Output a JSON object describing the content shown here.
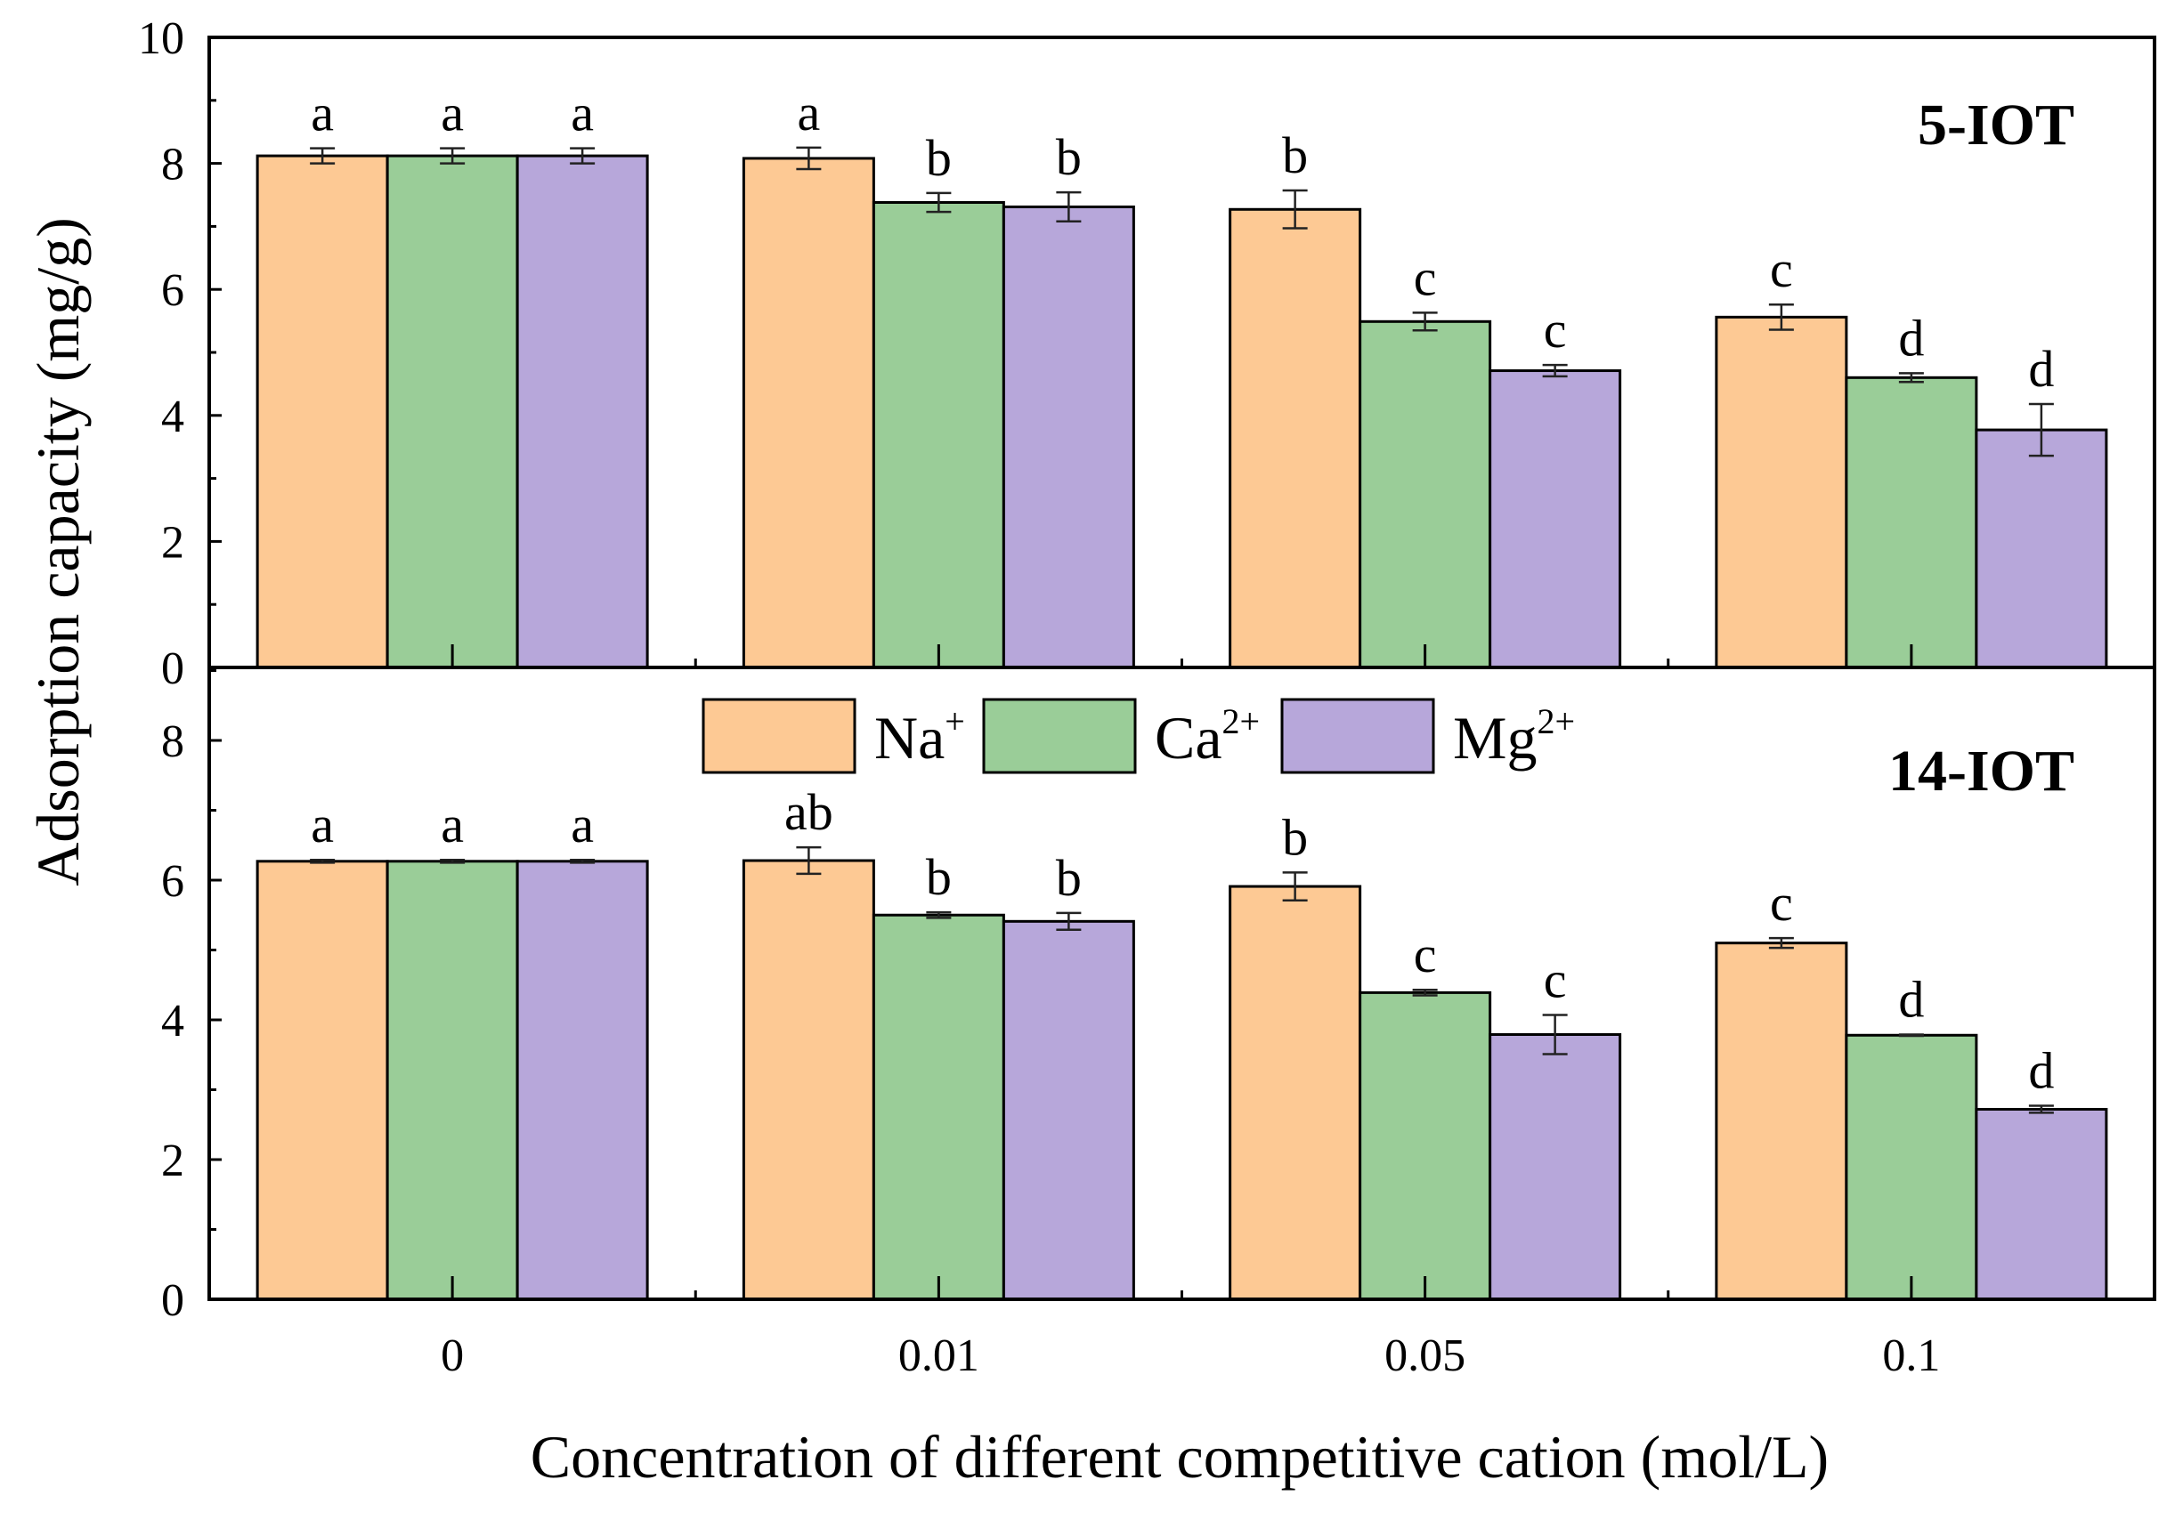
{
  "colors": {
    "na": "#FDC994",
    "ca": "#9ACD98",
    "mg": "#B7A7DA",
    "axis": "#000000"
  },
  "chart_data": {
    "type": "bar",
    "xlabel": "Concentration of different competitive cation (mol/L)",
    "ylabel": "Adsorption capacity  (mg/g)",
    "categories": [
      "0",
      "0.01",
      "0.05",
      "0.1"
    ],
    "legend": {
      "placement": "top-center of lower panel",
      "entries": [
        {
          "key": "na",
          "base": "Na",
          "sup": "+"
        },
        {
          "key": "ca",
          "base": "Ca",
          "sup": "2+"
        },
        {
          "key": "mg",
          "base": "Mg",
          "sup": "2+"
        }
      ]
    },
    "panels": [
      {
        "id": "top",
        "label": "5-IOT",
        "ylim": [
          0,
          10
        ],
        "yticks": [
          "0",
          "2",
          "4",
          "6",
          "8",
          "10"
        ],
        "series": [
          {
            "key": "na",
            "name": "Na+",
            "values": [
              8.12,
              8.08,
              7.27,
              5.56
            ],
            "errors": [
              0.12,
              0.17,
              0.3,
              0.2
            ],
            "letters": [
              "a",
              "a",
              "b",
              "c"
            ]
          },
          {
            "key": "ca",
            "name": "Ca2+",
            "values": [
              8.12,
              7.38,
              5.49,
              4.6
            ],
            "errors": [
              0.12,
              0.15,
              0.14,
              0.07
            ],
            "letters": [
              "a",
              "b",
              "c",
              "d"
            ]
          },
          {
            "key": "mg",
            "name": "Mg2+",
            "values": [
              8.12,
              7.31,
              4.71,
              3.77
            ],
            "errors": [
              0.12,
              0.23,
              0.09,
              0.41
            ],
            "letters": [
              "a",
              "b",
              "c",
              "d"
            ]
          }
        ]
      },
      {
        "id": "bottom",
        "label": "14-IOT",
        "ylim": [
          0,
          9
        ],
        "yticks": [
          "0",
          "2",
          "4",
          "6",
          "8"
        ],
        "series": [
          {
            "key": "na",
            "name": "Na+",
            "values": [
              6.27,
              6.28,
              5.91,
              5.1
            ],
            "errors": [
              0.02,
              0.19,
              0.2,
              0.07
            ],
            "letters": [
              "a",
              "ab",
              "b",
              "c"
            ]
          },
          {
            "key": "ca",
            "name": "Ca2+",
            "values": [
              6.27,
              5.5,
              4.39,
              3.78
            ],
            "errors": [
              0.02,
              0.04,
              0.04,
              0.01
            ],
            "letters": [
              "a",
              "b",
              "c",
              "d"
            ]
          },
          {
            "key": "mg",
            "name": "Mg2+",
            "values": [
              6.27,
              5.41,
              3.79,
              2.72
            ],
            "errors": [
              0.02,
              0.12,
              0.28,
              0.05
            ],
            "letters": [
              "a",
              "b",
              "c",
              "d"
            ]
          }
        ]
      }
    ]
  }
}
